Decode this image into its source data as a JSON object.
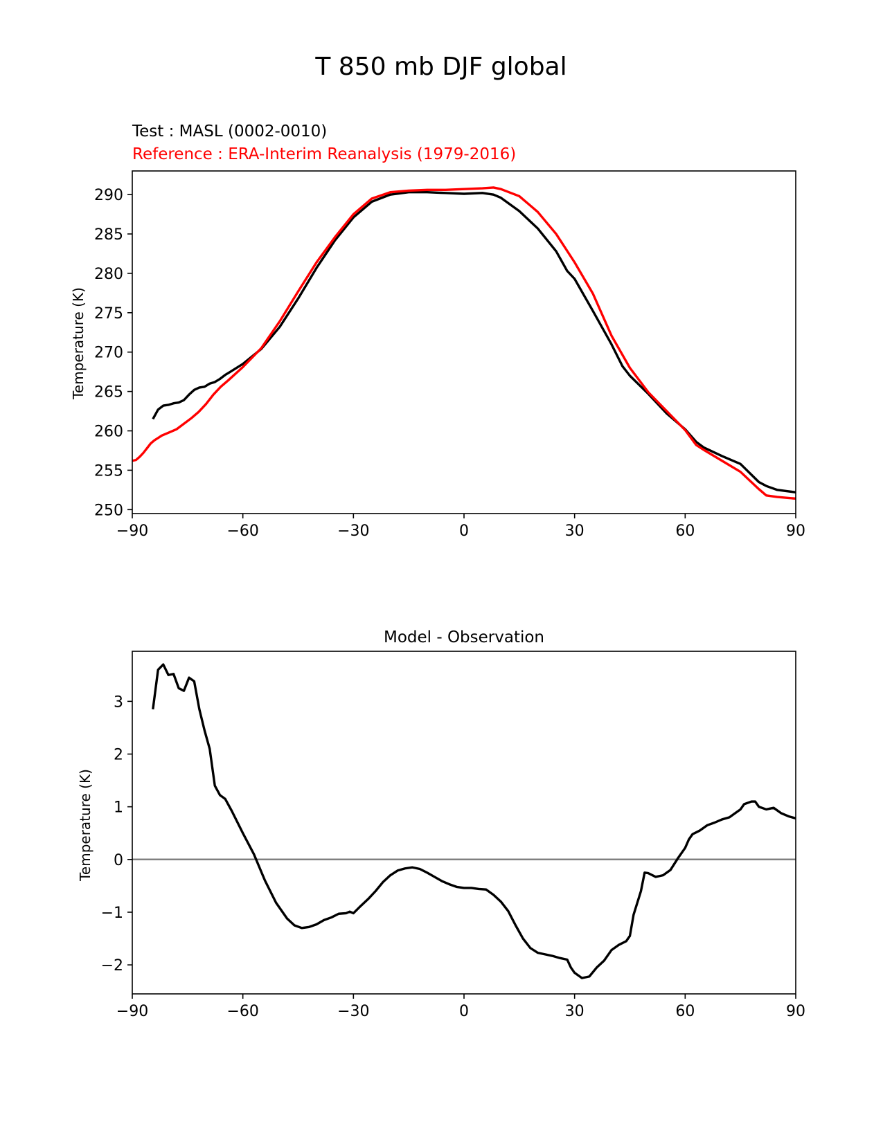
{
  "figure": {
    "title": "T 850 mb DJF global"
  },
  "chart_data": [
    {
      "type": "line",
      "subtitle_test": "Test : MASL (0002-0010)",
      "subtitle_reference": "Reference : ERA-Interim Reanalysis (1979-2016)",
      "xlabel": "",
      "ylabel": "Temperature (K)",
      "xlim": [
        -90,
        90
      ],
      "ylim": [
        249.5,
        293
      ],
      "xticks": [
        -90,
        -60,
        -30,
        0,
        30,
        60,
        90
      ],
      "yticks": [
        250,
        255,
        260,
        265,
        270,
        275,
        280,
        285,
        290
      ],
      "grid": false,
      "colors": {
        "test": "#000000",
        "reference": "#ff0000"
      },
      "series": [
        {
          "key": "test",
          "x": [
            -84.4,
            -83,
            -81.6,
            -80.2,
            -78.8,
            -77.4,
            -76,
            -74.6,
            -73.2,
            -71.8,
            -70.4,
            -69,
            -67.6,
            -66.2,
            -64.8,
            -63.4,
            -60,
            -55,
            -50,
            -45,
            -40,
            -35,
            -30,
            -25,
            -20,
            -15,
            -10,
            -5,
            0,
            5,
            8,
            10,
            15,
            20,
            25,
            28,
            30,
            35,
            40,
            43,
            45,
            50,
            55,
            60,
            63,
            65,
            70,
            75,
            80,
            82,
            85,
            90
          ],
          "y": [
            261.5,
            262.7,
            263.2,
            263.3,
            263.5,
            263.6,
            263.9,
            264.6,
            265.2,
            265.5,
            265.6,
            266.0,
            266.2,
            266.6,
            267.1,
            267.5,
            268.5,
            270.4,
            273.2,
            276.8,
            280.7,
            284.2,
            287.1,
            289.1,
            290.0,
            290.3,
            290.3,
            290.2,
            290.1,
            290.2,
            290.0,
            289.6,
            287.9,
            285.7,
            282.8,
            280.3,
            279.3,
            275.2,
            271.0,
            268.2,
            267.0,
            264.7,
            262.2,
            260.2,
            258.6,
            257.9,
            256.8,
            255.8,
            253.5,
            253.0,
            252.5,
            252.2
          ]
        },
        {
          "key": "reference",
          "x": [
            -90,
            -89,
            -88,
            -87,
            -86,
            -85,
            -84,
            -83,
            -82,
            -80,
            -78,
            -76,
            -74,
            -72,
            -70,
            -68,
            -66,
            -64,
            -60,
            -55,
            -50,
            -45,
            -40,
            -35,
            -30,
            -25,
            -20,
            -15,
            -10,
            -5,
            0,
            5,
            8,
            10,
            15,
            20,
            25,
            30,
            35,
            40,
            45,
            50,
            55,
            60,
            63,
            65,
            70,
            75,
            80,
            82,
            85,
            90
          ],
          "y": [
            256.2,
            256.3,
            256.7,
            257.2,
            257.8,
            258.4,
            258.8,
            259.1,
            259.4,
            259.8,
            260.2,
            260.9,
            261.6,
            262.4,
            263.4,
            264.6,
            265.6,
            266.4,
            268.1,
            270.5,
            273.9,
            277.7,
            281.4,
            284.6,
            287.5,
            289.5,
            290.3,
            290.5,
            290.6,
            290.6,
            290.7,
            290.8,
            290.9,
            290.7,
            289.8,
            287.8,
            285.0,
            281.4,
            277.4,
            272.1,
            268.0,
            264.9,
            262.5,
            260.1,
            258.2,
            257.6,
            256.2,
            254.8,
            252.6,
            251.8,
            251.6,
            251.4
          ]
        }
      ]
    },
    {
      "type": "line",
      "title": "Model - Observation",
      "xlabel": "",
      "ylabel": "Temperature (K)",
      "xlim": [
        -90,
        90
      ],
      "ylim": [
        -2.55,
        3.95
      ],
      "xticks": [
        -90,
        -60,
        -30,
        0,
        30,
        60,
        90
      ],
      "yticks": [
        -2,
        -1,
        0,
        1,
        2,
        3
      ],
      "grid": false,
      "zero_line_color": "#808080",
      "colors": {
        "diff": "#000000"
      },
      "series": [
        {
          "key": "diff",
          "x": [
            -84.4,
            -83,
            -81.6,
            -80.2,
            -78.8,
            -77.4,
            -76,
            -74.6,
            -73.2,
            -71.8,
            -70.4,
            -69,
            -67.6,
            -66.2,
            -64.8,
            -63,
            -60,
            -57,
            -54,
            -51,
            -48,
            -46,
            -44,
            -42,
            -40,
            -38,
            -36,
            -34,
            -32,
            -31,
            -30,
            -28,
            -26,
            -24,
            -22,
            -20,
            -18,
            -16,
            -14,
            -12,
            -10,
            -8,
            -6,
            -4,
            -2,
            0,
            2,
            4,
            6,
            8,
            10,
            12,
            14,
            16,
            18,
            20,
            22,
            24,
            26,
            28,
            29,
            30,
            32,
            34,
            36,
            38,
            40,
            42,
            44,
            45,
            46,
            48,
            49,
            50,
            52,
            54,
            56,
            58,
            60,
            61,
            62,
            64,
            66,
            68,
            70,
            72,
            74,
            75,
            76,
            78,
            79,
            80,
            82,
            84,
            86,
            88,
            90
          ],
          "y": [
            2.85,
            3.6,
            3.7,
            3.5,
            3.52,
            3.25,
            3.2,
            3.45,
            3.38,
            2.85,
            2.45,
            2.1,
            1.4,
            1.22,
            1.15,
            0.92,
            0.5,
            0.1,
            -0.4,
            -0.82,
            -1.12,
            -1.25,
            -1.3,
            -1.28,
            -1.23,
            -1.15,
            -1.1,
            -1.03,
            -1.02,
            -0.99,
            -1.02,
            -0.88,
            -0.75,
            -0.6,
            -0.43,
            -0.3,
            -0.21,
            -0.17,
            -0.15,
            -0.18,
            -0.25,
            -0.33,
            -0.41,
            -0.47,
            -0.52,
            -0.54,
            -0.54,
            -0.56,
            -0.57,
            -0.67,
            -0.8,
            -0.98,
            -1.25,
            -1.5,
            -1.68,
            -1.77,
            -1.8,
            -1.83,
            -1.87,
            -1.9,
            -2.05,
            -2.15,
            -2.25,
            -2.22,
            -2.05,
            -1.92,
            -1.72,
            -1.62,
            -1.55,
            -1.45,
            -1.05,
            -0.6,
            -0.25,
            -0.26,
            -0.33,
            -0.3,
            -0.2,
            0.02,
            0.22,
            0.38,
            0.48,
            0.55,
            0.65,
            0.7,
            0.76,
            0.8,
            0.9,
            0.95,
            1.05,
            1.1,
            1.1,
            1.0,
            0.95,
            0.98,
            0.88,
            0.82,
            0.78
          ]
        }
      ]
    }
  ]
}
